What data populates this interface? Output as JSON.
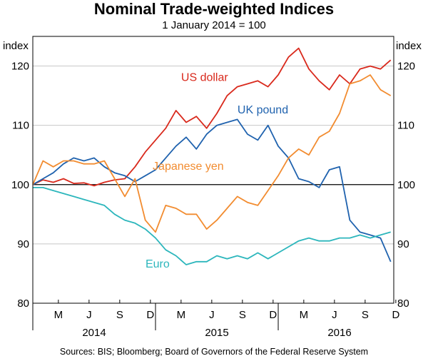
{
  "chart_data": {
    "type": "line",
    "title": "Nominal Trade-weighted Indices",
    "subtitle": "1 January 2014 = 100",
    "ylabel_left": "index",
    "ylabel_right": "index",
    "ylim": [
      80,
      125
    ],
    "yticks": [
      80,
      90,
      100,
      110,
      120
    ],
    "ytick_labels": [
      "80",
      "90",
      "100",
      "110",
      "120"
    ],
    "xlim": [
      0,
      35.3
    ],
    "month_ticks": [
      {
        "label": "M",
        "x": 2.5
      },
      {
        "label": "J",
        "x": 5.5
      },
      {
        "label": "S",
        "x": 8.5
      },
      {
        "label": "D",
        "x": 11.5
      },
      {
        "label": "M",
        "x": 14.5
      },
      {
        "label": "J",
        "x": 17.5
      },
      {
        "label": "S",
        "x": 20.5
      },
      {
        "label": "D",
        "x": 23.5
      },
      {
        "label": "M",
        "x": 26.5
      },
      {
        "label": "J",
        "x": 29.5
      },
      {
        "label": "S",
        "x": 32.5
      },
      {
        "label": "D",
        "x": 35.5
      }
    ],
    "year_labels": [
      {
        "label": "2014",
        "x": 6
      },
      {
        "label": "2015",
        "x": 18
      },
      {
        "label": "2016",
        "x": 30
      }
    ],
    "year_dividers": [
      0,
      12,
      24
    ],
    "reference_line": 100,
    "series": [
      {
        "name": "US dollar",
        "color": "#d9291c",
        "label_pos": [
          16.8,
          117.5
        ],
        "x": [
          0,
          1,
          2,
          3,
          4,
          5,
          6,
          7,
          8,
          9,
          10,
          11,
          12,
          13,
          14,
          15,
          16,
          17,
          18,
          19,
          20,
          21,
          22,
          23,
          24,
          25,
          26,
          27,
          28,
          29,
          30,
          31,
          32,
          33,
          34,
          35
        ],
        "values": [
          100,
          100.8,
          100.4,
          101.0,
          100.2,
          100.3,
          99.8,
          100.4,
          100.8,
          101.0,
          103.0,
          105.5,
          107.5,
          109.5,
          112.5,
          110.5,
          111.5,
          109.5,
          112.0,
          115.0,
          116.5,
          117.0,
          117.5,
          116.5,
          118.5,
          121.5,
          123.0,
          119.5,
          117.5,
          116.0,
          118.5,
          117.0,
          119.5,
          120.0,
          119.5,
          121.0
        ]
      },
      {
        "name": "UK pound",
        "color": "#1f62ae",
        "label_pos": [
          22.5,
          112
        ],
        "x": [
          0,
          1,
          2,
          3,
          4,
          5,
          6,
          7,
          8,
          9,
          10,
          11,
          12,
          13,
          14,
          15,
          16,
          17,
          18,
          19,
          20,
          21,
          22,
          23,
          24,
          25,
          26,
          27,
          28,
          29,
          30,
          31,
          32,
          33,
          34,
          35
        ],
        "values": [
          100,
          101.0,
          102.0,
          103.5,
          104.5,
          104.0,
          104.5,
          103.0,
          102.0,
          101.5,
          100.5,
          101.5,
          102.5,
          104.5,
          106.5,
          108.0,
          106.0,
          108.5,
          110.0,
          110.5,
          111.0,
          108.5,
          107.5,
          110.0,
          106.5,
          104.5,
          101.0,
          100.5,
          99.5,
          102.5,
          103.0,
          94.0,
          92.0,
          91.5,
          91.0,
          87.0
        ]
      },
      {
        "name": "Japanese yen",
        "color": "#f28c30",
        "label_pos": [
          15.2,
          102.5
        ],
        "x": [
          0,
          1,
          2,
          3,
          4,
          5,
          6,
          7,
          8,
          9,
          10,
          11,
          12,
          13,
          14,
          15,
          16,
          17,
          18,
          19,
          20,
          21,
          22,
          23,
          24,
          25,
          26,
          27,
          28,
          29,
          30,
          31,
          32,
          33,
          34,
          35
        ],
        "values": [
          100,
          104.0,
          103.0,
          104.0,
          104.0,
          103.5,
          103.5,
          104.0,
          101.0,
          98.0,
          101.0,
          94.0,
          92.0,
          96.5,
          96.0,
          95.0,
          95.0,
          92.5,
          94.0,
          96.0,
          98.0,
          97.0,
          96.5,
          99.0,
          101.5,
          104.5,
          106.0,
          105.0,
          108.0,
          109.0,
          112.0,
          117.0,
          117.5,
          118.5,
          116.0,
          115.0
        ]
      },
      {
        "name": "Euro",
        "color": "#2cb6bc",
        "label_pos": [
          12.2,
          86
        ],
        "x": [
          0,
          1,
          2,
          3,
          4,
          5,
          6,
          7,
          8,
          9,
          10,
          11,
          12,
          13,
          14,
          15,
          16,
          17,
          18,
          19,
          20,
          21,
          22,
          23,
          24,
          25,
          26,
          27,
          28,
          29,
          30,
          31,
          32,
          33,
          34,
          35
        ],
        "values": [
          99.5,
          99.5,
          99.0,
          98.5,
          98.0,
          97.5,
          97.0,
          96.5,
          95.0,
          94.0,
          93.5,
          92.5,
          91.0,
          89.0,
          88.0,
          86.5,
          87.0,
          87.0,
          88.0,
          87.5,
          88.0,
          87.5,
          88.5,
          87.5,
          88.5,
          89.5,
          90.5,
          91.0,
          90.5,
          90.5,
          91.0,
          91.0,
          91.5,
          91.0,
          91.5,
          92.0
        ]
      }
    ]
  },
  "source_text": "Sources:   BIS; Bloomberg; Board of Governors of the Federal Reserve System"
}
